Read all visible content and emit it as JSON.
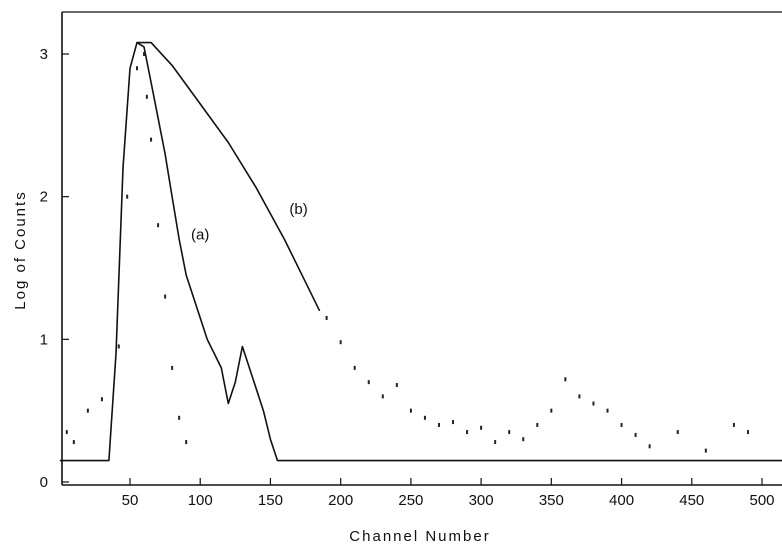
{
  "chart_data": {
    "type": "line",
    "title": "",
    "xlabel": "Channel Number",
    "ylabel": "Log of Counts",
    "xlim": [
      0,
      515
    ],
    "ylim": [
      0,
      3.25
    ],
    "x_ticks": [
      50,
      100,
      150,
      200,
      250,
      300,
      350,
      400,
      450,
      500
    ],
    "y_ticks": [
      0,
      1,
      2,
      3
    ],
    "grid": false,
    "series": [
      {
        "name": "(a)",
        "style": "solid",
        "points": [
          [
            0,
            0.15
          ],
          [
            35,
            0.15
          ],
          [
            40,
            0.9
          ],
          [
            45,
            2.2
          ],
          [
            50,
            2.9
          ],
          [
            55,
            3.08
          ],
          [
            60,
            3.05
          ],
          [
            65,
            2.8
          ],
          [
            70,
            2.55
          ],
          [
            75,
            2.3
          ],
          [
            80,
            2.0
          ],
          [
            85,
            1.7
          ],
          [
            90,
            1.45
          ],
          [
            95,
            1.3
          ],
          [
            100,
            1.15
          ],
          [
            105,
            1.0
          ],
          [
            110,
            0.9
          ],
          [
            115,
            0.8
          ],
          [
            120,
            0.55
          ],
          [
            125,
            0.7
          ],
          [
            130,
            0.95
          ],
          [
            135,
            0.8
          ],
          [
            140,
            0.65
          ],
          [
            145,
            0.5
          ],
          [
            150,
            0.3
          ],
          [
            155,
            0.15
          ],
          [
            515,
            0.15
          ]
        ]
      },
      {
        "name": "(b)",
        "style": "solid",
        "points": [
          [
            55,
            3.08
          ],
          [
            65,
            3.08
          ],
          [
            80,
            2.92
          ],
          [
            100,
            2.65
          ],
          [
            120,
            2.38
          ],
          [
            140,
            2.06
          ],
          [
            160,
            1.7
          ],
          [
            175,
            1.4
          ],
          [
            185,
            1.2
          ]
        ]
      },
      {
        "name": "",
        "style": "points",
        "points": [
          [
            5,
            0.35
          ],
          [
            10,
            0.28
          ],
          [
            20,
            0.5
          ],
          [
            30,
            0.58
          ],
          [
            42,
            0.95
          ],
          [
            48,
            2.0
          ],
          [
            55,
            2.9
          ],
          [
            60,
            3.0
          ],
          [
            62,
            2.7
          ],
          [
            65,
            2.4
          ],
          [
            70,
            1.8
          ],
          [
            75,
            1.3
          ],
          [
            80,
            0.8
          ],
          [
            85,
            0.45
          ],
          [
            90,
            0.28
          ],
          [
            190,
            1.15
          ],
          [
            200,
            0.98
          ],
          [
            210,
            0.8
          ],
          [
            220,
            0.7
          ],
          [
            230,
            0.6
          ],
          [
            240,
            0.68
          ],
          [
            250,
            0.5
          ],
          [
            260,
            0.45
          ],
          [
            270,
            0.4
          ],
          [
            280,
            0.42
          ],
          [
            290,
            0.35
          ],
          [
            300,
            0.38
          ],
          [
            310,
            0.28
          ],
          [
            320,
            0.35
          ],
          [
            330,
            0.3
          ],
          [
            340,
            0.4
          ],
          [
            350,
            0.5
          ],
          [
            360,
            0.72
          ],
          [
            370,
            0.6
          ],
          [
            380,
            0.55
          ],
          [
            390,
            0.5
          ],
          [
            400,
            0.4
          ],
          [
            410,
            0.33
          ],
          [
            420,
            0.25
          ],
          [
            440,
            0.35
          ],
          [
            460,
            0.22
          ],
          [
            480,
            0.4
          ],
          [
            490,
            0.35
          ]
        ]
      }
    ],
    "annotations": [
      {
        "text": "(a)",
        "x": 100,
        "y": 1.7
      },
      {
        "text": "(b)",
        "x": 170,
        "y": 1.88
      }
    ]
  }
}
